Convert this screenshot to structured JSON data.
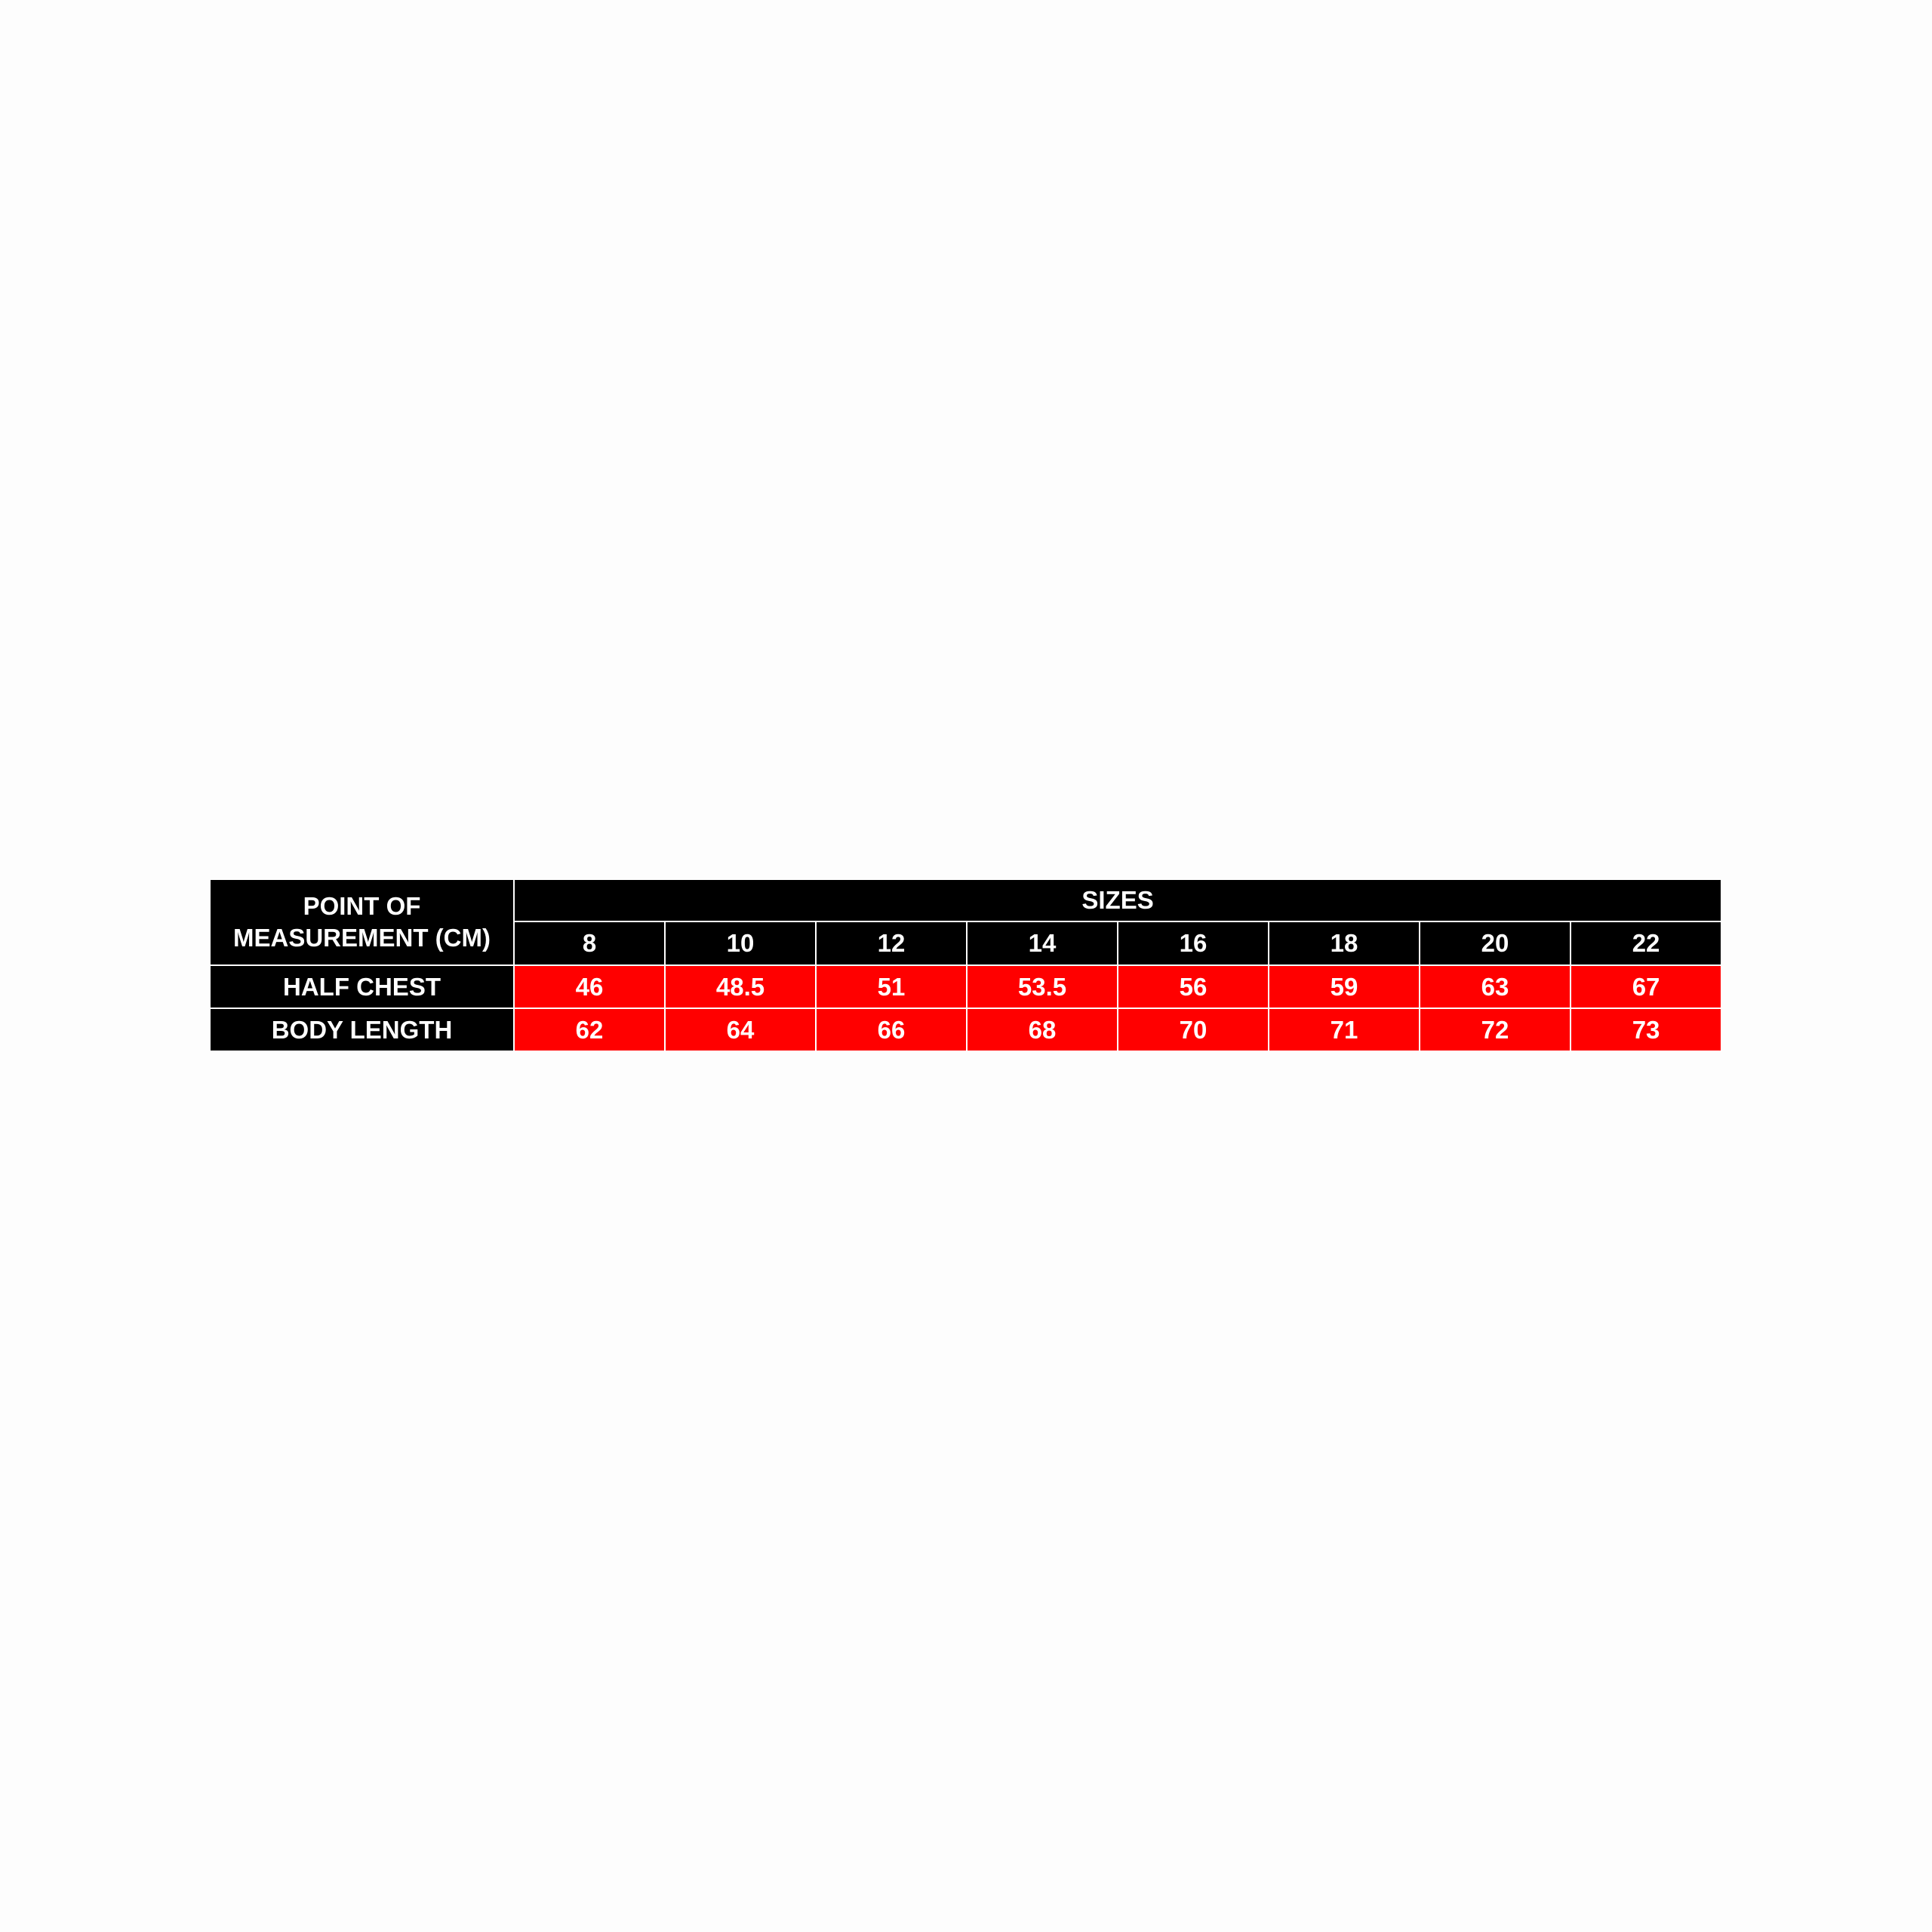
{
  "table": {
    "corner_label": "POINT OF MEASUREMENT (CM)",
    "sizes_label": "SIZES",
    "sizes": [
      8,
      10,
      12,
      14,
      16,
      18,
      20,
      22
    ],
    "rows": [
      {
        "label": "HALF CHEST",
        "values": [
          46,
          48.5,
          51,
          53.5,
          56,
          59,
          63,
          67
        ]
      },
      {
        "label": "BODY LENGTH",
        "values": [
          62,
          64,
          66,
          68,
          70,
          71,
          72,
          73
        ]
      }
    ]
  }
}
